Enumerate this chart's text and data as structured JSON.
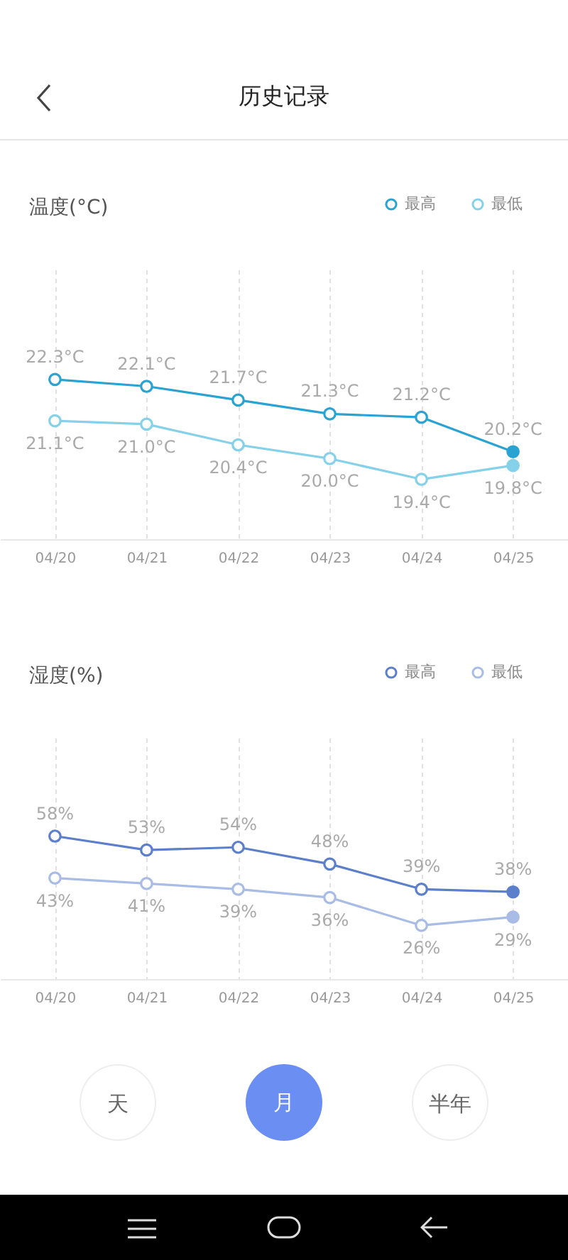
{
  "chart_data": [
    {
      "type": "line",
      "title": "历史记录",
      "ylabel": "温度(°C)",
      "categories": [
        "04/20",
        "04/21",
        "04/22",
        "04/23",
        "04/24",
        "04/25"
      ],
      "series": [
        {
          "name": "最高",
          "color": "#2aa3d3",
          "values": [
            22.3,
            22.1,
            21.7,
            21.3,
            21.2,
            20.2
          ],
          "value_labels": [
            "22.3°C",
            "22.1°C",
            "21.7°C",
            "21.3°C",
            "21.2°C",
            "20.2°C"
          ]
        },
        {
          "name": "最低",
          "color": "#86d1ea",
          "values": [
            21.1,
            21.0,
            20.4,
            20.0,
            19.4,
            19.8
          ],
          "value_labels": [
            "21.1°C",
            "21.0°C",
            "20.4°C",
            "20.0°C",
            "19.4°C",
            "19.8°C"
          ]
        }
      ],
      "legend": "top right",
      "grid": "x",
      "marker": "circle",
      "line_style": "solid",
      "tick_labels": "x"
    },
    {
      "type": "line",
      "ylabel": "湿度(%)",
      "categories": [
        "04/20",
        "04/21",
        "04/22",
        "04/23",
        "04/24",
        "04/25"
      ],
      "series": [
        {
          "name": "最高",
          "color": "#5b7fcb",
          "values": [
            58,
            53,
            54,
            48,
            39,
            38
          ],
          "value_labels": [
            "58%",
            "53%",
            "54%",
            "48%",
            "39%",
            "38%"
          ]
        },
        {
          "name": "最低",
          "color": "#a8bce6",
          "values": [
            43,
            41,
            39,
            36,
            26,
            29
          ],
          "value_labels": [
            "43%",
            "41%",
            "39%",
            "36%",
            "26%",
            "29%"
          ]
        }
      ],
      "legend": "top right",
      "grid": "x",
      "marker": "circle",
      "line_style": "solid",
      "tick_labels": "x",
      "annotations": [
        "天",
        "月",
        "半年"
      ]
    }
  ]
}
